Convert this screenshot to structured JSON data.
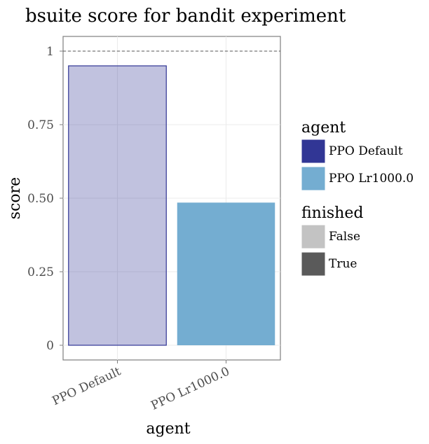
{
  "chart_data": {
    "type": "bar",
    "title": "bsuite score for bandit experiment",
    "xlabel": "agent",
    "ylabel": "score",
    "categories": [
      "PPO Default",
      "PPO Lr1000.0"
    ],
    "values": [
      0.95,
      0.485
    ],
    "finished": [
      false,
      true
    ],
    "ylim": [
      -0.05,
      1.05
    ],
    "yticks": [
      0,
      0.25,
      0.5,
      0.75,
      1
    ],
    "ytick_labels": [
      "0",
      "0.25",
      "0.50",
      "0.75",
      "1"
    ],
    "reference_line": 1,
    "grid": true,
    "legend_position": "right",
    "colors": {
      "PPO Default": "#313695",
      "PPO Lr1000.0": "#74add1",
      "False": "#c3c3c3",
      "True": "#5a5a5a"
    }
  },
  "legend": {
    "agent": {
      "title": "agent",
      "items": [
        {
          "label": "PPO Default",
          "color": "#313695"
        },
        {
          "label": "PPO Lr1000.0",
          "color": "#74add1"
        }
      ]
    },
    "finished": {
      "title": "finished",
      "items": [
        {
          "label": "False",
          "color": "#c3c3c3"
        },
        {
          "label": "True",
          "color": "#5a5a5a"
        }
      ]
    }
  }
}
